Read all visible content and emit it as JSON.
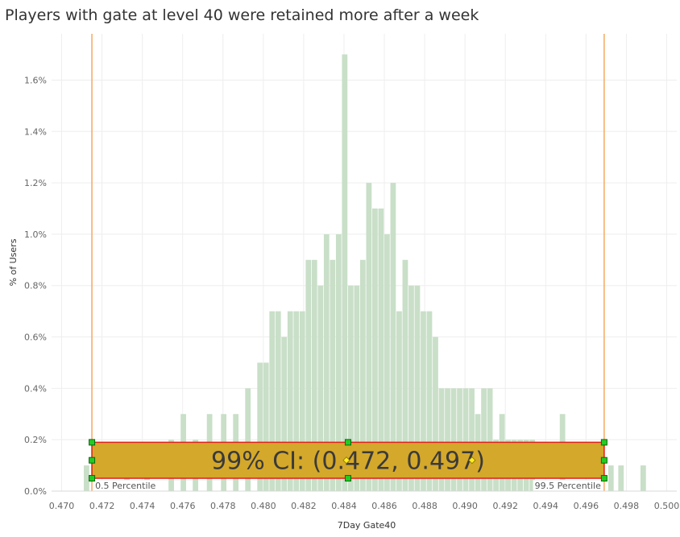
{
  "title": "Players with gate at level 40 were retained more after a week",
  "chart_data": {
    "type": "bar",
    "title": "Players with gate at level 40 were retained more after a week",
    "xlabel": "7Day Gate40",
    "ylabel": "% of Users",
    "xlim": [
      0.4695,
      0.5005
    ],
    "ylim": [
      0.0,
      0.0178
    ],
    "bin_width": 0.00025,
    "x_ticks": [
      "0.470",
      "0.472",
      "0.474",
      "0.476",
      "0.478",
      "0.480",
      "0.482",
      "0.484",
      "0.486",
      "0.488",
      "0.490",
      "0.492",
      "0.494",
      "0.496",
      "0.498",
      "0.500"
    ],
    "x_tick_values": [
      0.47,
      0.472,
      0.474,
      0.476,
      0.478,
      0.48,
      0.482,
      0.484,
      0.486,
      0.488,
      0.49,
      0.492,
      0.494,
      0.496,
      0.498,
      0.5
    ],
    "y_ticks": [
      "0.0%",
      "0.2%",
      "0.4%",
      "0.6%",
      "0.8%",
      "1.0%",
      "1.2%",
      "1.4%",
      "1.6%"
    ],
    "y_tick_values": [
      0.0,
      0.002,
      0.004,
      0.006,
      0.008,
      0.01,
      0.012,
      0.014,
      0.016
    ],
    "grid": true,
    "color": "#c9dfc8",
    "bins_x": [
      0.4711,
      0.4731,
      0.4741,
      0.4753,
      0.4759,
      0.4765,
      0.4772,
      0.4779,
      0.4785,
      0.4791,
      0.4797,
      0.48,
      0.4803,
      0.4806,
      0.4809,
      0.4812,
      0.4815,
      0.4818,
      0.4821,
      0.4824,
      0.4827,
      0.483,
      0.4833,
      0.4836,
      0.4839,
      0.4842,
      0.4845,
      0.4848,
      0.4851,
      0.4854,
      0.4857,
      0.486,
      0.4863,
      0.4866,
      0.4869,
      0.4872,
      0.4875,
      0.4878,
      0.4881,
      0.4884,
      0.4887,
      0.489,
      0.4893,
      0.4896,
      0.4899,
      0.4902,
      0.4905,
      0.4908,
      0.4911,
      0.4914,
      0.4917,
      0.492,
      0.4923,
      0.4926,
      0.4929,
      0.4932,
      0.4947,
      0.4971,
      0.4976,
      0.4987
    ],
    "bins_y": [
      0.001,
      0.001,
      0.001,
      0.002,
      0.003,
      0.002,
      0.003,
      0.003,
      0.003,
      0.004,
      0.005,
      0.005,
      0.007,
      0.007,
      0.006,
      0.007,
      0.007,
      0.007,
      0.009,
      0.009,
      0.008,
      0.01,
      0.009,
      0.01,
      0.017,
      0.008,
      0.008,
      0.009,
      0.012,
      0.011,
      0.011,
      0.01,
      0.012,
      0.007,
      0.009,
      0.008,
      0.008,
      0.007,
      0.007,
      0.006,
      0.004,
      0.004,
      0.004,
      0.004,
      0.004,
      0.004,
      0.003,
      0.004,
      0.004,
      0.002,
      0.003,
      0.002,
      0.002,
      0.002,
      0.002,
      0.002,
      0.003,
      0.001,
      0.001,
      0.001
    ],
    "reference_lines": [
      {
        "x": 0.4715,
        "label": "0.5 Percentile",
        "color": "#f5a860"
      },
      {
        "x": 0.4969,
        "label": "99.5 Percentile",
        "color": "#f5a860"
      }
    ],
    "annotation": {
      "text": "99% CI: (0.472, 0.497)",
      "x_start": 0.4715,
      "x_end": 0.4969,
      "y_low": 0.0005,
      "y_high": 0.0019,
      "fill": "#d4a82a",
      "border": "#e02020"
    }
  }
}
